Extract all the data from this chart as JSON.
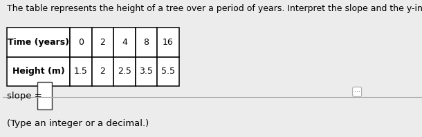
{
  "title": "The table represents the height of a tree over a period of years. Interpret the slope and the y-intercept from the tab",
  "col_headers": [
    "Time (years)",
    "0",
    "2",
    "4",
    "8",
    "16"
  ],
  "row2_label": "Height (m)",
  "row2_values": [
    "1.5",
    "2",
    "2.5",
    "3.5",
    "5.5"
  ],
  "slope_label": "slope =",
  "slope_hint": "(Type an integer or a decimal.)",
  "bg_color": "#ececec",
  "table_bg": "#ffffff",
  "border_color": "#000000",
  "text_color": "#000000",
  "title_fontsize": 9.0,
  "table_fontsize": 9.0,
  "slope_fontsize": 9.5
}
